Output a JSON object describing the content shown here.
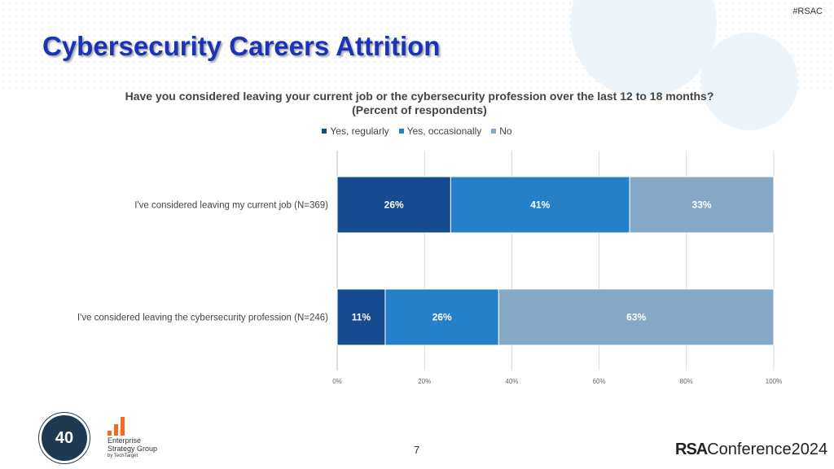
{
  "hashtag": "#RSAC",
  "title": "Cybersecurity Careers Attrition",
  "page_number": "7",
  "footer": {
    "esg_line1": "Enterprise",
    "esg_line2": "Strategy Group",
    "esg_line3": "by TechTarget",
    "rsa_brand": "RSA",
    "rsa_conf": "Conference",
    "rsa_year": "2024",
    "seal_text": "40"
  },
  "colors": {
    "yes_regularly": "#174b8f",
    "yes_occasionally": "#2680c7",
    "no": "#84a8c6",
    "title": "#1a33b8",
    "esg_orange": "#f26b21"
  },
  "chart_data": {
    "type": "bar",
    "orientation": "horizontal",
    "stacked": true,
    "title": "Have you considered leaving your current job or the cybersecurity profession over the last 12 to 18 months? (Percent of respondents)",
    "categories": [
      "I've considered leaving my current job (N=369)",
      "I've considered leaving the cybersecurity profession (N=246)"
    ],
    "series": [
      {
        "name": "Yes, regularly",
        "values": [
          26,
          11
        ]
      },
      {
        "name": "Yes, occasionally",
        "values": [
          41,
          26
        ]
      },
      {
        "name": "No",
        "values": [
          33,
          63
        ]
      }
    ],
    "xlim": [
      0,
      100
    ],
    "ticks": [
      "0%",
      "20%",
      "40%",
      "60%",
      "80%",
      "100%"
    ],
    "grid": true,
    "legend": "top"
  }
}
